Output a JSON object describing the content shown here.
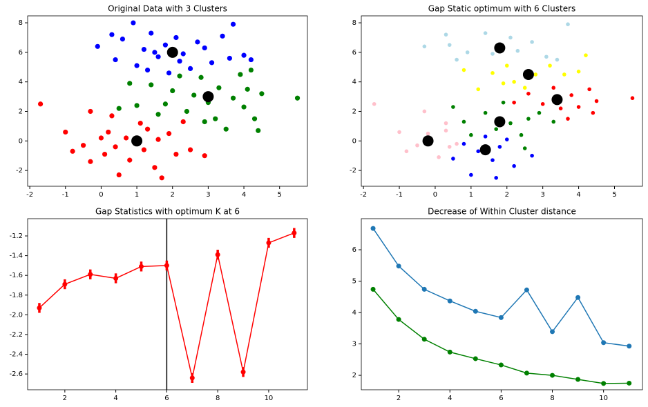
{
  "chart_data": [
    {
      "type": "scatter",
      "title": "Original Data with 3 Clusters",
      "xlim": [
        -2.06,
        5.78
      ],
      "ylim": [
        -3.07,
        8.47
      ],
      "xticks": [
        -2,
        -1,
        0,
        1,
        2,
        3,
        4,
        5
      ],
      "yticks": [
        -2,
        0,
        2,
        4,
        6,
        8
      ],
      "series": [
        {
          "color": "#ff0000",
          "x": [
            -1.7,
            -1,
            -0.8,
            -0.5,
            -0.3,
            0,
            0.1,
            0.2,
            0.3,
            0.4,
            0.5,
            0.7,
            0.8,
            1.1,
            1.2,
            1.3,
            1.5,
            1.6,
            1.7,
            1.9,
            2.1,
            2.3,
            2.5,
            2.9,
            -0.3
          ],
          "y": [
            2.5,
            0.6,
            -0.7,
            -0.3,
            -1.4,
            0.2,
            -0.9,
            0.6,
            1.7,
            -0.4,
            -2.3,
            0.2,
            -1.3,
            1.2,
            -0.6,
            0.8,
            -1.8,
            0.1,
            -2.5,
            0.5,
            -0.9,
            1.3,
            -0.6,
            -1,
            2
          ]
        },
        {
          "color": "#0000ff",
          "x": [
            -0.1,
            0.3,
            0.4,
            0.6,
            0.9,
            1,
            1.2,
            1.3,
            1.4,
            1.6,
            1.8,
            1.9,
            2.1,
            2.3,
            2.5,
            2.7,
            2.9,
            3.1,
            3.4,
            3.6,
            3.7,
            4,
            4.2,
            2.2,
            1.5
          ],
          "y": [
            6.4,
            7.2,
            5.5,
            6.9,
            8,
            5.1,
            6.2,
            4.8,
            7.3,
            5.7,
            6.5,
            4.6,
            7,
            5.9,
            4.9,
            6.7,
            6.3,
            5.3,
            7.1,
            5.6,
            7.9,
            5.8,
            5.5,
            5.4,
            6
          ]
        },
        {
          "color": "#008000",
          "x": [
            0.5,
            0.8,
            1,
            1.4,
            1.6,
            1.8,
            2,
            2.2,
            2.4,
            2.6,
            2.8,
            3,
            3.2,
            3.3,
            3.5,
            3.7,
            3.9,
            4,
            4.1,
            4.3,
            4.5,
            4.4,
            4.2,
            5.5,
            2.9
          ],
          "y": [
            2.2,
            3.9,
            2.4,
            3.8,
            1.8,
            2.5,
            3.4,
            4.4,
            2,
            3.1,
            4.3,
            2.6,
            1.5,
            3.6,
            0.8,
            2.9,
            4.5,
            2.3,
            3.5,
            1.5,
            3.2,
            0.7,
            4.8,
            2.9,
            1.3
          ]
        },
        {
          "color": "#000000",
          "x": [
            1,
            2,
            3
          ],
          "y": [
            0,
            6,
            3
          ]
        }
      ]
    },
    {
      "type": "scatter",
      "title": "Gap Static optimum  with 6 Clusters",
      "xlim": [
        -2.06,
        5.78
      ],
      "ylim": [
        -3.07,
        8.47
      ],
      "xticks": [
        -2,
        -1,
        0,
        1,
        2,
        3,
        4,
        5
      ],
      "yticks": [
        -2,
        0,
        2,
        4,
        6,
        8
      ],
      "series": [
        {
          "color": "#add8e6",
          "x": [
            0.3,
            0.4,
            0.6,
            0.9,
            1.4,
            1.6,
            2.1,
            2.3,
            2.7,
            3.1,
            3.7,
            3.4,
            -0.3
          ],
          "y": [
            7.2,
            6.5,
            5.5,
            6,
            7.3,
            5.9,
            7,
            6.1,
            6.7,
            5.7,
            7.9,
            5.5,
            6.4
          ]
        },
        {
          "color": "#ffff00",
          "x": [
            0.8,
            1.2,
            1.6,
            2,
            2.2,
            2.5,
            2.8,
            3.2,
            3.6,
            4,
            4.2,
            1.9
          ],
          "y": [
            4.8,
            3.5,
            4.6,
            5.1,
            4,
            3.6,
            4.5,
            5.1,
            4.5,
            4.7,
            5.8,
            3.9
          ]
        },
        {
          "color": "#ff0000",
          "x": [
            2.2,
            2.6,
            3,
            3.3,
            3.5,
            3.8,
            4,
            4.3,
            4.5,
            4.4,
            5.5,
            3.7
          ],
          "y": [
            2.6,
            3.2,
            2.5,
            3.6,
            2.2,
            3.1,
            2.3,
            3.5,
            2.7,
            1.9,
            2.9,
            1.5
          ]
        },
        {
          "color": "#008000",
          "x": [
            0.5,
            0.8,
            1,
            1.4,
            1.7,
            1.9,
            2.1,
            2.4,
            2.6,
            2.9,
            3.3,
            2.5
          ],
          "y": [
            2.3,
            1.3,
            0.4,
            1.9,
            0.8,
            2.6,
            1.2,
            0.4,
            1.5,
            1.9,
            1.3,
            -0.5
          ]
        },
        {
          "color": "#0000ff",
          "x": [
            0.5,
            0.8,
            1,
            1.2,
            1.4,
            1.6,
            1.8,
            2,
            2.2,
            1.7,
            2.7
          ],
          "y": [
            -1.2,
            -0.2,
            -2.3,
            -0.7,
            0.3,
            -1.3,
            -0.4,
            0.1,
            -1.7,
            -2.5,
            -1
          ]
        },
        {
          "color": "#ffc0cb",
          "x": [
            -1.7,
            -1,
            -0.8,
            -0.5,
            -0.2,
            0.1,
            0.3,
            0.4,
            0.6,
            -0.3,
            0.3
          ],
          "y": [
            2.5,
            0.6,
            -0.7,
            -0.3,
            0.5,
            -1.1,
            0.7,
            -0.4,
            -0.2,
            2,
            1.2
          ]
        },
        {
          "color": "#000000",
          "x": [
            1.8,
            2.6,
            3.4,
            1.8,
            1.4,
            -0.2
          ],
          "y": [
            6.3,
            4.5,
            2.8,
            1.3,
            -0.6,
            0
          ]
        }
      ]
    },
    {
      "type": "errorbar",
      "title": "Gap Statistics with optimum K at 6",
      "xlim": [
        0.54,
        11.52
      ],
      "ylim": [
        -2.76,
        -1.025
      ],
      "xticks": [
        2,
        4,
        6,
        8,
        10
      ],
      "yticks": [
        -2.6,
        -2.4,
        -2.2,
        {
          "value": -2,
          "label": "-2.0"
        },
        -1.8,
        -1.6,
        -1.4,
        -1.2
      ],
      "vline": 6,
      "series": [
        {
          "color": "#ff0000",
          "x": [
            1,
            2,
            3,
            4,
            5,
            6,
            7,
            8,
            9,
            10,
            11
          ],
          "values": [
            -1.93,
            -1.69,
            -1.59,
            -1.63,
            -1.51,
            -1.5,
            -2.64,
            -1.39,
            -2.58,
            -1.27,
            -1.17
          ],
          "errors": [
            0.05,
            0.05,
            0.05,
            0.05,
            0.05,
            0.05,
            0.05,
            0.05,
            0.05,
            0.05,
            0.05
          ]
        }
      ]
    },
    {
      "type": "line",
      "title": "Decrease of Within Cluster distance",
      "xlim": [
        0.54,
        11.52
      ],
      "ylim": [
        1.54,
        6.99
      ],
      "xticks": [
        2,
        4,
        6,
        8,
        10
      ],
      "yticks": [
        2,
        3,
        4,
        5,
        6
      ],
      "series": [
        {
          "color": "#1f77b4",
          "x": [
            1,
            2,
            3,
            4,
            5,
            6,
            7,
            8,
            9,
            10,
            11
          ],
          "values": [
            6.68,
            5.48,
            4.74,
            4.37,
            4.04,
            3.84,
            4.72,
            3.39,
            4.48,
            3.04,
            2.93
          ]
        },
        {
          "color": "#008000",
          "x": [
            1,
            2,
            3,
            4,
            5,
            6,
            7,
            8,
            9,
            10,
            11
          ],
          "values": [
            4.74,
            3.78,
            3.15,
            2.74,
            2.53,
            2.33,
            2.07,
            2,
            1.87,
            1.74,
            1.75
          ]
        }
      ]
    }
  ]
}
